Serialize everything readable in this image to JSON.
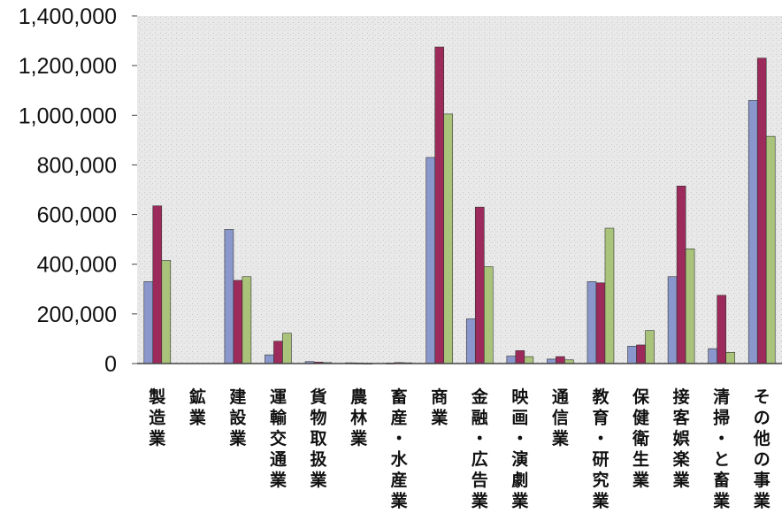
{
  "chart_data": {
    "type": "bar",
    "title": "",
    "xlabel": "",
    "ylabel": "",
    "ylim": [
      0,
      1400000
    ],
    "yticks": [
      0,
      200000,
      400000,
      600000,
      800000,
      1000000,
      1200000,
      1400000
    ],
    "ytick_labels": [
      "0",
      "200,000",
      "400,000",
      "600,000",
      "800,000",
      "1,000,000",
      "1,200,000",
      "1,400,000"
    ],
    "grid": false,
    "legend": "none",
    "categories": [
      "製造業",
      "鉱業",
      "建設業",
      "運輸交通業",
      "貨物取扱業",
      "農林業",
      "畜産・水産業",
      "商業",
      "金融・広告業",
      "映画・演劇業",
      "通信業",
      "教育・研究業",
      "保健衛生業",
      "接客娯楽業",
      "清掃・と畜業",
      "その他の事業"
    ],
    "series": [
      {
        "color": "#8a97cc",
        "values": [
          330000,
          0,
          540000,
          35000,
          8000,
          3000,
          2000,
          830000,
          180000,
          30000,
          18000,
          330000,
          70000,
          350000,
          60000,
          1060000
        ]
      },
      {
        "color": "#9c2a5a",
        "values": [
          635000,
          0,
          335000,
          90000,
          6000,
          2000,
          4000,
          1275000,
          630000,
          52000,
          28000,
          325000,
          75000,
          715000,
          275000,
          1230000
        ]
      },
      {
        "color": "#a9c47a",
        "values": [
          415000,
          0,
          350000,
          122000,
          4000,
          1000,
          3000,
          1005000,
          390000,
          28000,
          15000,
          545000,
          133000,
          462000,
          45000,
          915000
        ]
      }
    ]
  }
}
